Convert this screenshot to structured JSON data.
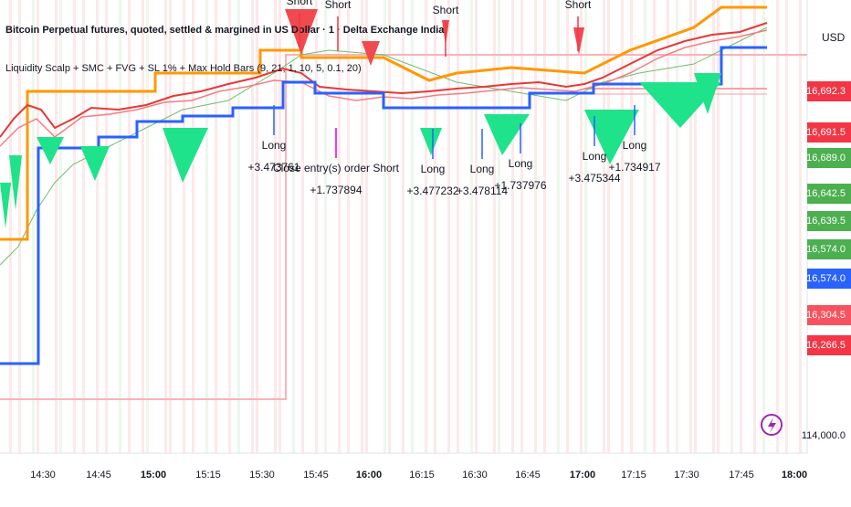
{
  "header": {
    "title": "Bitcoin Perpetual futures, quoted, settled & margined in US Dollar · 1 · Delta Exchange India",
    "indicator": "Liquidity Scalp + SMC + FVG + SL 1% + Max Hold Bars (9, 21, 1, 10, 5, 0.1, 20)"
  },
  "axis": {
    "currency": "USD",
    "bottom_price": "114,000.0",
    "price_tags": [
      {
        "label": "116,692.3",
        "color": "#f23645"
      },
      {
        "label": "116,691.5",
        "color": "#f23645"
      },
      {
        "label": "116,689.0",
        "color": "#4caf50"
      },
      {
        "label": "116,642.5",
        "color": "#4caf50"
      },
      {
        "label": "116,639.5",
        "color": "#4caf50"
      },
      {
        "label": "116,574.0",
        "color": "#4caf50"
      },
      {
        "label": "116,574.0",
        "color": "#2962ff"
      },
      {
        "label": "116,304.5",
        "color": "#f7525f"
      },
      {
        "label": "116,266.5",
        "color": "#f23645"
      }
    ],
    "times": [
      {
        "label": "14:30",
        "bold": false
      },
      {
        "label": "14:45",
        "bold": false
      },
      {
        "label": "15:00",
        "bold": true
      },
      {
        "label": "15:15",
        "bold": false
      },
      {
        "label": "15:30",
        "bold": false
      },
      {
        "label": "15:45",
        "bold": false
      },
      {
        "label": "16:00",
        "bold": true
      },
      {
        "label": "16:15",
        "bold": false
      },
      {
        "label": "16:30",
        "bold": false
      },
      {
        "label": "16:45",
        "bold": false
      },
      {
        "label": "17:00",
        "bold": true
      },
      {
        "label": "17:15",
        "bold": false
      },
      {
        "label": "17:30",
        "bold": false
      },
      {
        "label": "17:45",
        "bold": false
      },
      {
        "label": "18:00",
        "bold": true
      }
    ]
  },
  "annotations": {
    "shorts": [
      "Short",
      "Short",
      "Short",
      "Short"
    ],
    "longs": [
      {
        "label": "Long",
        "pnl": "+3.473761"
      },
      {
        "label": "Close entry(s) order Short",
        "pnl": "+1.737894"
      },
      {
        "label": "Long",
        "pnl": "+3.477232"
      },
      {
        "label": "Long",
        "pnl": "+3.478114"
      },
      {
        "label": "Long",
        "pnl": "+1.737976"
      },
      {
        "label": "Long",
        "pnl": "+3.475344"
      },
      {
        "label": "Long",
        "pnl": "+1.734917"
      }
    ]
  }
}
